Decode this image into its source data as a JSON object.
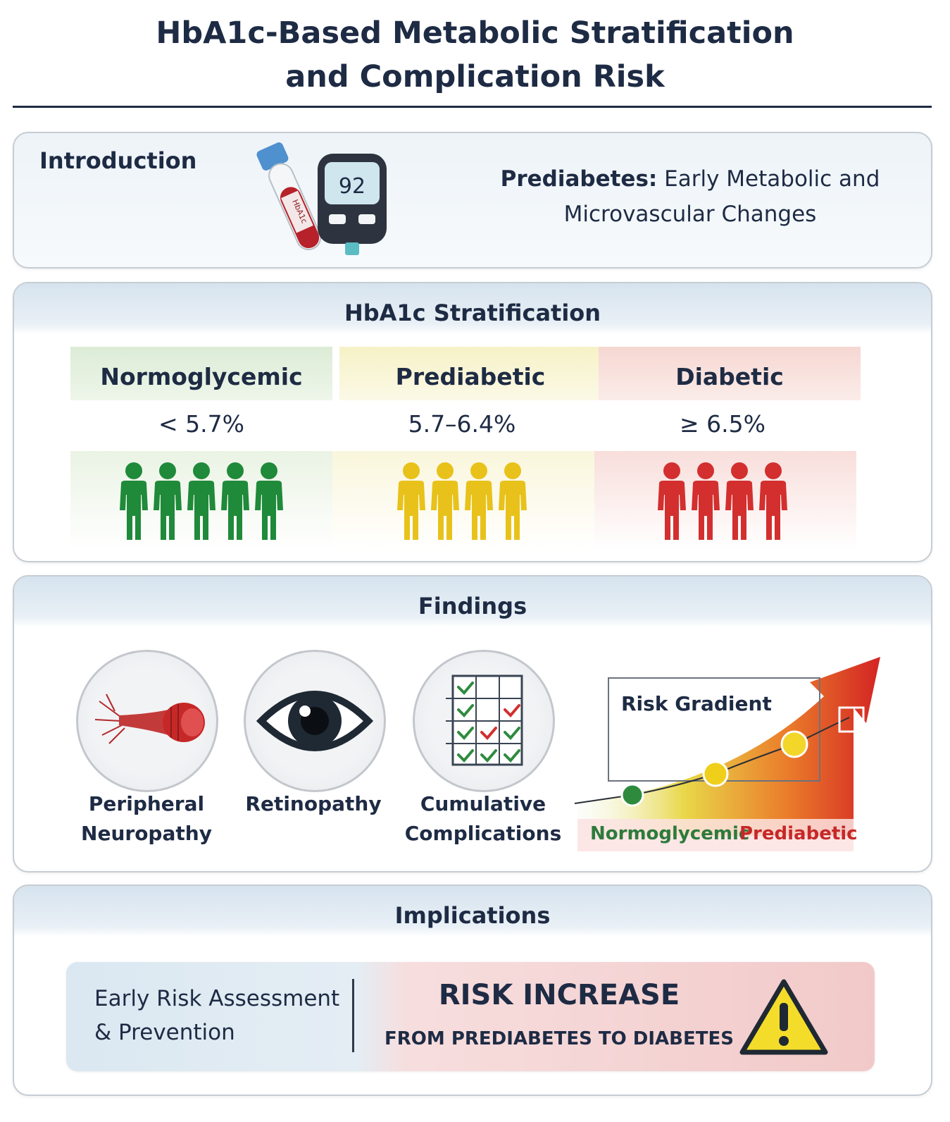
{
  "title": {
    "line1": "HbA1c-Based Metabolic Stratification",
    "line2": "and Complication Risk"
  },
  "intro": {
    "label": "Introduction",
    "tube_label": "HbA1c",
    "meter_value": "92",
    "text_bold": "Prediabetes:",
    "text_rest1": " Early Metabolic and",
    "text_rest2": "Microvascular Changes"
  },
  "stratification": {
    "heading": "HbA1c Stratification",
    "categories": [
      {
        "name": "Normoglycemic",
        "range": "< 5.7%",
        "color": "#1f8a3a",
        "band": "#e3f0dd",
        "people": 5
      },
      {
        "name": "Prediabetic",
        "range": "5.7–6.4%",
        "color": "#e8c21a",
        "band": "#f8f4d2",
        "people": 4
      },
      {
        "name": "Diabetic",
        "range": "≥ 6.5%",
        "color": "#d32f2f",
        "band": "#f8dcd8",
        "people": 4
      }
    ]
  },
  "findings": {
    "heading": "Findings",
    "items": [
      {
        "label1": "Peripheral",
        "label2": "Neuropathy",
        "icon": "nerve-icon"
      },
      {
        "label1": "Retinopathy",
        "label2": "",
        "icon": "eye-icon"
      },
      {
        "label1": "Cumulative",
        "label2": "Complications",
        "icon": "checklist-icon"
      }
    ],
    "gradient": {
      "title": "Risk Gradient",
      "label_low": "Normoglycemic",
      "label_high": "Prediabetic"
    }
  },
  "implications": {
    "heading": "Implications",
    "left_line1": "Early Risk Assessment",
    "left_line2": "& Prevention",
    "risk_title": "RISK INCREASE",
    "risk_sub": "FROM PREDIABETES TO DIABETES"
  },
  "colors": {
    "navy": "#1e2b44",
    "green": "#1f8a3a",
    "yellow": "#e8c21a",
    "red": "#d32f2f"
  }
}
